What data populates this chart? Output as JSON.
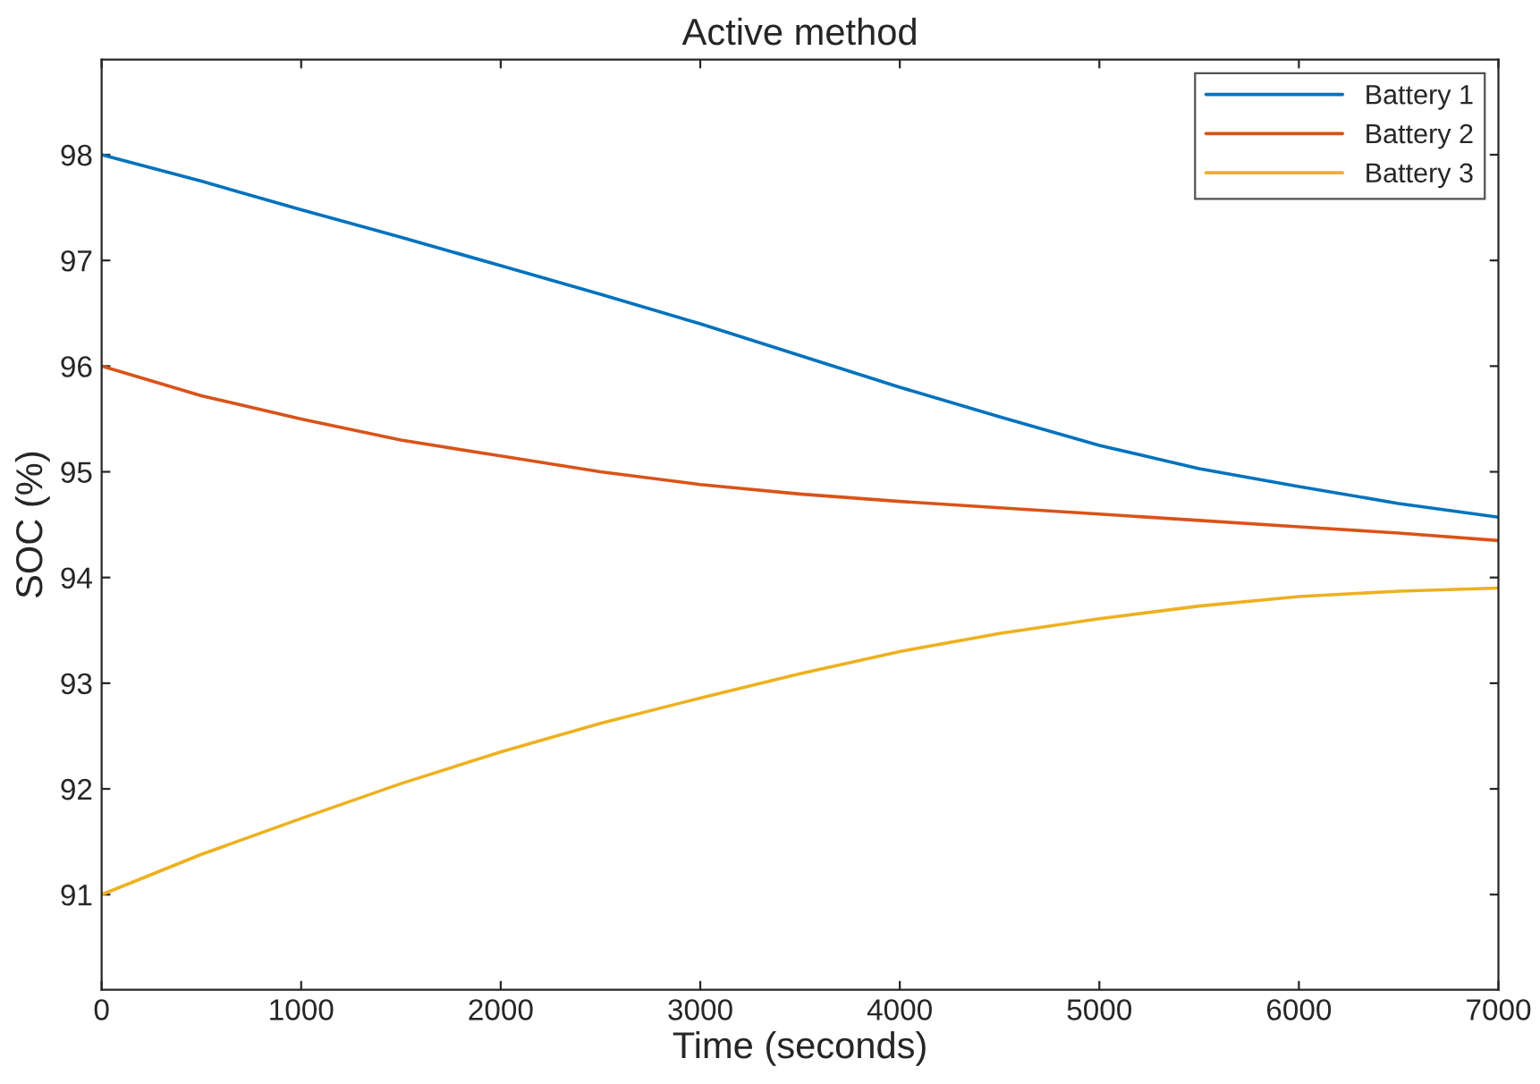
{
  "chart_data": {
    "type": "line",
    "title": "Active method",
    "xlabel": "Time (seconds)",
    "ylabel": "SOC (%)",
    "x": [
      0,
      500,
      1000,
      1500,
      2000,
      2500,
      3000,
      3500,
      4000,
      4500,
      5000,
      5500,
      6000,
      6500,
      7000
    ],
    "series": [
      {
        "name": "Battery 1",
        "color": "#0072bd",
        "values": [
          98.0,
          97.75,
          97.48,
          97.22,
          96.95,
          96.68,
          96.4,
          96.1,
          95.8,
          95.52,
          95.25,
          95.03,
          94.86,
          94.7,
          94.57
        ]
      },
      {
        "name": "Battery 2",
        "color": "#d95319",
        "values": [
          96.0,
          95.72,
          95.5,
          95.3,
          95.15,
          95.0,
          94.88,
          94.79,
          94.72,
          94.66,
          94.6,
          94.54,
          94.48,
          94.42,
          94.35
        ]
      },
      {
        "name": "Battery 3",
        "color": "#edb120",
        "values": [
          91.0,
          91.38,
          91.72,
          92.05,
          92.35,
          92.62,
          92.86,
          93.09,
          93.3,
          93.47,
          93.61,
          93.73,
          93.82,
          93.87,
          93.9
        ]
      }
    ],
    "xlim": [
      0,
      7000
    ],
    "xticks": [
      0,
      1000,
      2000,
      3000,
      4000,
      5000,
      6000,
      7000
    ],
    "ylim": [
      90.1,
      98.9
    ],
    "yticks": [
      91,
      92,
      93,
      94,
      95,
      96,
      97,
      98
    ],
    "grid": false,
    "legend": "top right",
    "marker": "none",
    "line_style": "solid"
  }
}
